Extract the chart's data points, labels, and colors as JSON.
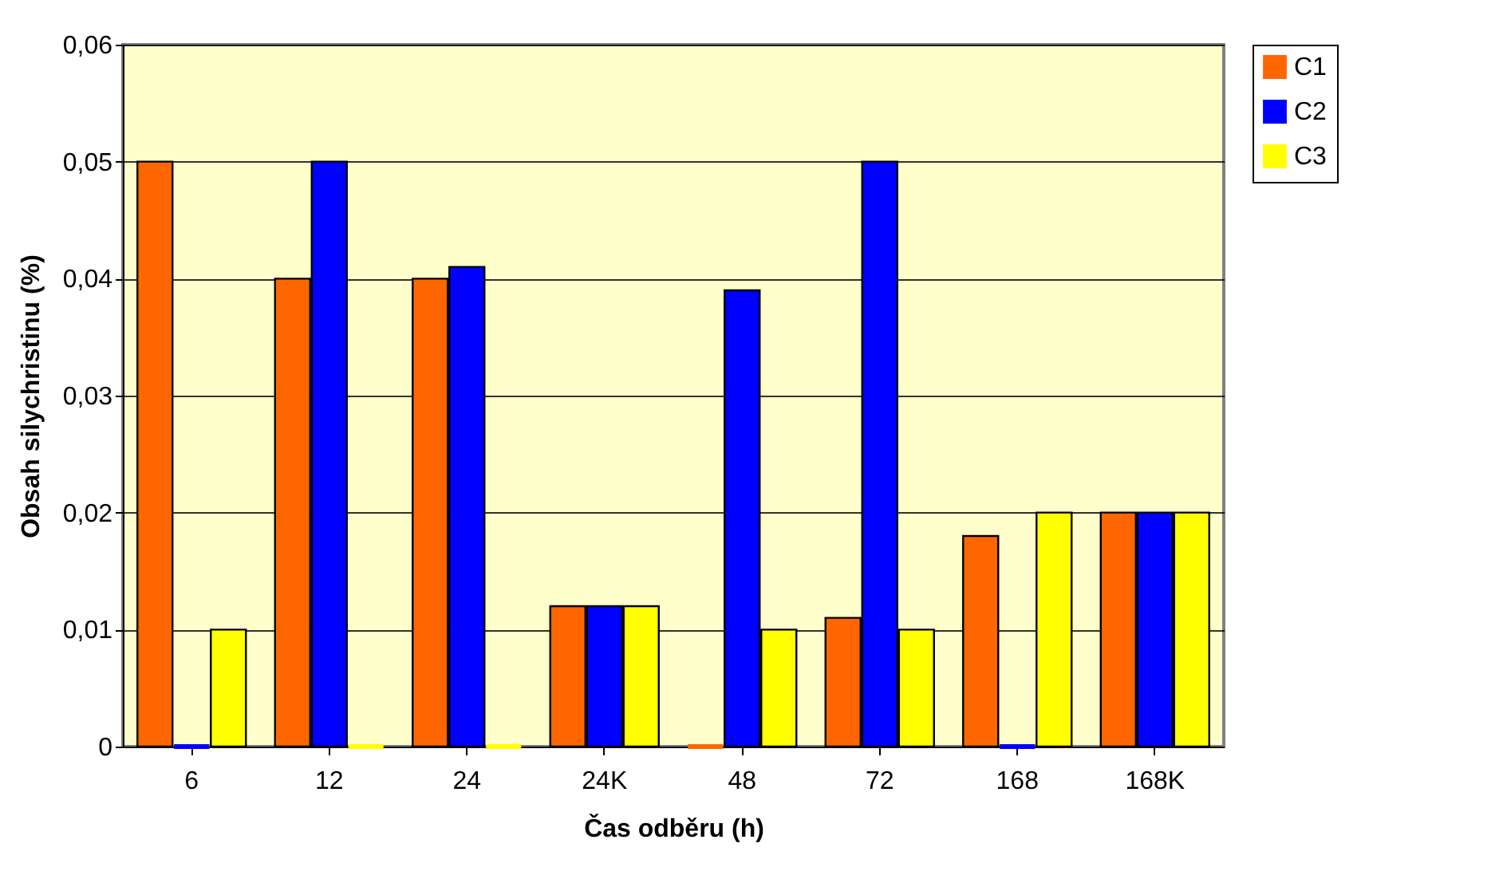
{
  "chart_data": {
    "type": "bar",
    "xlabel": "Čas odběru (h)",
    "ylabel": "Obsah silychristinu (%)",
    "categories": [
      "6",
      "12",
      "24",
      "24K",
      "48",
      "72",
      "168",
      "168K"
    ],
    "series": [
      {
        "name": "C1",
        "color": "#ff6600",
        "values": [
          0.05,
          0.04,
          0.04,
          0.012,
          0,
          0.011,
          0.018,
          0.02
        ]
      },
      {
        "name": "C2",
        "color": "#0000ff",
        "values": [
          0,
          0.05,
          0.041,
          0.012,
          0.039,
          0.05,
          0,
          0.02
        ]
      },
      {
        "name": "C3",
        "color": "#ffff00",
        "values": [
          0.01,
          0,
          0,
          0.012,
          0.01,
          0.01,
          0.02,
          0.02
        ]
      }
    ],
    "ylim": [
      0,
      0.06
    ],
    "yticks": [
      {
        "value": 0,
        "label": "0"
      },
      {
        "value": 0.01,
        "label": "0,01"
      },
      {
        "value": 0.02,
        "label": "0,02"
      },
      {
        "value": 0.03,
        "label": "0,03"
      },
      {
        "value": 0.04,
        "label": "0,04"
      },
      {
        "value": 0.05,
        "label": "0,05"
      },
      {
        "value": 0.06,
        "label": "0,06"
      }
    ],
    "grid": "y",
    "legend": "right"
  }
}
